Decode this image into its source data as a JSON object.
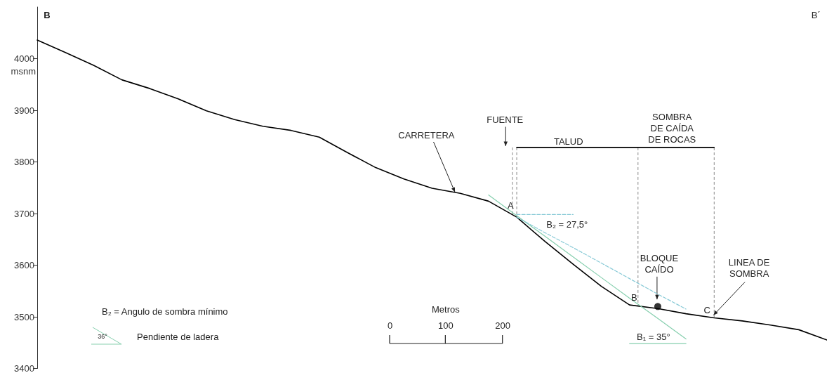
{
  "chart_data": {
    "type": "line",
    "ylabel": "msnm",
    "categories": [
      null,
      null,
      null,
      null,
      null,
      null,
      null,
      null,
      null,
      null,
      null,
      null,
      null,
      null,
      null,
      null,
      null,
      null,
      null,
      null,
      null,
      null,
      null,
      null,
      null,
      null,
      null,
      null,
      null
    ],
    "ylim": [
      3400,
      4100
    ],
    "yticks": [
      3400,
      3500,
      3600,
      3700,
      3800,
      3900,
      4000
    ],
    "tick_labels": "y",
    "grid": false,
    "marker": "none",
    "line_style": "solid",
    "series": [
      {
        "color": "#000000",
        "values": [
          4036,
          4012,
          3987,
          3959,
          3942,
          3922,
          3899,
          3882,
          3869,
          3861,
          3848,
          3818,
          3789,
          3767,
          3749,
          3739,
          3724,
          3693,
          3646,
          3602,
          3559,
          3523,
          3516,
          3506,
          3498,
          3492,
          3484,
          3475,
          3455
        ]
      },
      {
        "color": "#86cfae",
        "values": [
          null,
          null,
          null,
          null,
          null,
          null,
          null,
          null,
          null,
          null,
          null,
          null,
          null,
          null,
          null,
          null,
          3736,
          3696,
          3656,
          3616,
          3576,
          3536,
          3497,
          3457,
          null,
          null,
          null,
          null,
          null
        ]
      },
      {
        "color": "#86cfae",
        "values": [
          null,
          null,
          null,
          null,
          null,
          null,
          null,
          null,
          null,
          null,
          null,
          null,
          null,
          null,
          null,
          null,
          null,
          null,
          null,
          null,
          null,
          3448,
          3448,
          3448,
          null,
          null,
          null,
          null,
          null
        ]
      },
      {
        "color": "#86c9d6",
        "line_style": "dashed",
        "values": [
          null,
          null,
          null,
          null,
          null,
          null,
          null,
          null,
          null,
          null,
          null,
          null,
          null,
          null,
          null,
          null,
          null,
          3693,
          3663,
          3634,
          3604,
          3574,
          3544,
          3515,
          null,
          null,
          null,
          null,
          null
        ]
      },
      {
        "color": "#86c9d6",
        "line_style": "dashed",
        "values": [
          null,
          null,
          null,
          null,
          null,
          null,
          null,
          null,
          null,
          null,
          null,
          null,
          null,
          null,
          null,
          null,
          null,
          3698,
          3698,
          3698,
          null,
          null,
          null,
          null,
          null,
          null,
          null,
          null,
          null
        ]
      },
      {
        "color": "#000000",
        "values": [
          null,
          null,
          null,
          null,
          null,
          null,
          null,
          null,
          null,
          null,
          null,
          null,
          null,
          null,
          null,
          null,
          null,
          3828,
          3828,
          3828,
          3828,
          3828,
          3828,
          3828,
          3828,
          null,
          null,
          null,
          null
        ]
      },
      {
        "type": "scatter",
        "marker": "circle",
        "color": "#000000",
        "values": [
          null,
          null,
          null,
          null,
          null,
          null,
          null,
          null,
          null,
          null,
          null,
          null,
          null,
          null,
          null,
          null,
          null,
          null,
          null,
          null,
          null,
          null,
          3520,
          null,
          null,
          null,
          null,
          null,
          null
        ]
      }
    ],
    "annotations": [
      "B",
      "B´",
      "CARRETERA",
      "FUENTE",
      "TALUD",
      "SOMBRA\nDE CAÍDA\nDE ROCAS",
      "A",
      "B₂ = 27,5°",
      "B",
      "BLOQUE\nCAÍDO",
      "C",
      "LINEA DE\nSOMBRA",
      "B₁ = 35°",
      "0",
      "100",
      "200",
      "Metros",
      "B₂ = Angulo de sombra mínimo",
      "36°",
      "Pendiente de ladera"
    ]
  }
}
